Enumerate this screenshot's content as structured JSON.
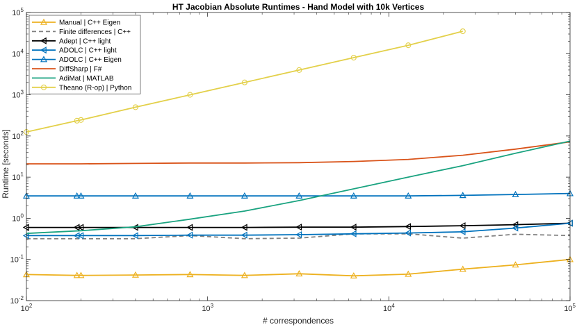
{
  "chart_data": {
    "type": "line",
    "title": "HT Jacobian Absolute Runtimes - Hand Model with 10k Vertices",
    "xlabel": "# correspondences",
    "ylabel": "Runtime [seconds]",
    "xscale": "log",
    "yscale": "log",
    "xlim": [
      100,
      100000
    ],
    "ylim": [
      0.01,
      100000
    ],
    "x_ticks": [
      {
        "value": 100,
        "base": "10",
        "exp": "2"
      },
      {
        "value": 1000,
        "base": "10",
        "exp": "3"
      },
      {
        "value": 10000,
        "base": "10",
        "exp": "4"
      },
      {
        "value": 100000,
        "base": "10",
        "exp": "5"
      }
    ],
    "y_ticks": [
      {
        "value": 0.01,
        "base": "10",
        "exp": "-2"
      },
      {
        "value": 0.1,
        "base": "10",
        "exp": "-1"
      },
      {
        "value": 1,
        "base": "10",
        "exp": "0"
      },
      {
        "value": 10,
        "base": "10",
        "exp": "1"
      },
      {
        "value": 100,
        "base": "10",
        "exp": "2"
      },
      {
        "value": 1000,
        "base": "10",
        "exp": "3"
      },
      {
        "value": 10000,
        "base": "10",
        "exp": "4"
      },
      {
        "value": 100000,
        "base": "10",
        "exp": "5"
      }
    ],
    "grid": false,
    "legend_position": "top-left",
    "series": [
      {
        "name": "Manual | C++ Eigen",
        "color": "#EDB120",
        "marker": "triangle-up",
        "dash": "solid",
        "x": [
          100,
          190,
          200,
          400,
          800,
          1600,
          3200,
          6400,
          12800,
          25600,
          50000,
          100000
        ],
        "y": [
          0.043,
          0.041,
          0.041,
          0.042,
          0.043,
          0.041,
          0.045,
          0.04,
          0.044,
          0.058,
          0.074,
          0.1
        ]
      },
      {
        "name": "Finite differences | C++",
        "color": "#808080",
        "marker": "none",
        "dash": "dashed",
        "x": [
          100,
          190,
          200,
          400,
          800,
          1600,
          3200,
          6400,
          12800,
          25600,
          50000,
          100000
        ],
        "y": [
          0.32,
          0.32,
          0.32,
          0.32,
          0.38,
          0.32,
          0.33,
          0.42,
          0.42,
          0.33,
          0.41,
          0.38
        ]
      },
      {
        "name": "Adept | C++ light",
        "color": "#000000",
        "marker": "triangle-left",
        "dash": "solid",
        "x": [
          100,
          190,
          200,
          400,
          800,
          1600,
          3200,
          6400,
          12800,
          25600,
          50000,
          100000
        ],
        "y": [
          0.6,
          0.6,
          0.6,
          0.6,
          0.6,
          0.6,
          0.61,
          0.61,
          0.63,
          0.66,
          0.7,
          0.76
        ]
      },
      {
        "name": "ADOLC | C++ light",
        "color": "#0072BD",
        "marker": "triangle-left",
        "dash": "solid",
        "x": [
          100,
          190,
          200,
          400,
          800,
          1600,
          3200,
          6400,
          12800,
          25600,
          50000,
          100000
        ],
        "y": [
          0.38,
          0.38,
          0.38,
          0.38,
          0.39,
          0.39,
          0.4,
          0.42,
          0.44,
          0.47,
          0.58,
          0.76
        ]
      },
      {
        "name": "ADOLC | C++ Eigen",
        "color": "#0072BD",
        "marker": "triangle-up",
        "dash": "solid",
        "x": [
          100,
          190,
          200,
          400,
          800,
          1600,
          3200,
          6400,
          12800,
          25600,
          50000,
          100000
        ],
        "y": [
          3.5,
          3.5,
          3.5,
          3.5,
          3.5,
          3.5,
          3.5,
          3.5,
          3.5,
          3.6,
          3.8,
          4.0
        ]
      },
      {
        "name": "DiffSharp | F#",
        "color": "#D95319",
        "marker": "none",
        "dash": "solid",
        "x": [
          100,
          200,
          400,
          800,
          1600,
          3200,
          6400,
          12800,
          25600,
          50000,
          100000
        ],
        "y": [
          21,
          21,
          21.5,
          22,
          22,
          22.5,
          24,
          27,
          34,
          48,
          72
        ]
      },
      {
        "name": "AdiMat | MATLAB",
        "color": "#1AA380",
        "marker": "none",
        "dash": "solid",
        "x": [
          100,
          200,
          400,
          800,
          1600,
          3200,
          6400,
          12800,
          25600,
          50000,
          100000
        ],
        "y": [
          0.43,
          0.5,
          0.62,
          0.95,
          1.5,
          2.7,
          5.2,
          10,
          19,
          38,
          75
        ]
      },
      {
        "name": "Theano (R-op) | Python",
        "color": "#E3D04A",
        "marker": "circle",
        "dash": "solid",
        "x": [
          100,
          190,
          200,
          400,
          800,
          1600,
          3200,
          6400,
          12800,
          25600
        ],
        "y": [
          125,
          235,
          245,
          500,
          1000,
          2000,
          4000,
          8000,
          16000,
          35000
        ]
      }
    ]
  }
}
